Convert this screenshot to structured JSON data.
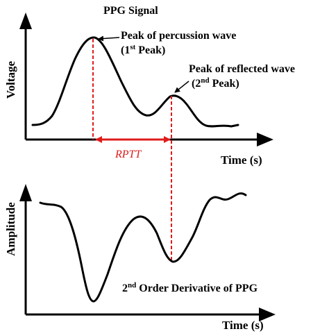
{
  "top_panel": {
    "title": "PPG Signal",
    "ylabel": "Voltage",
    "xlabel": "Time (s)",
    "peak1": {
      "line1": "Peak of percussion wave",
      "line2_pre": "(1",
      "line2_sup": "st",
      "line2_post": " Peak)"
    },
    "peak2": {
      "line1": "Peak of reflected wave",
      "line2_pre": "(2",
      "line2_sup": "nd",
      "line2_post": " Peak)"
    },
    "interval_label": "RPTT"
  },
  "bottom_panel": {
    "ylabel": "Amplitude",
    "xlabel": "Time (s)",
    "caption_pre": "2",
    "caption_sup": "nd",
    "caption_post": " Order Derivative of PPG"
  },
  "colors": {
    "axis": "#000000",
    "signal": "#000000",
    "marker": "#e01b1b"
  }
}
